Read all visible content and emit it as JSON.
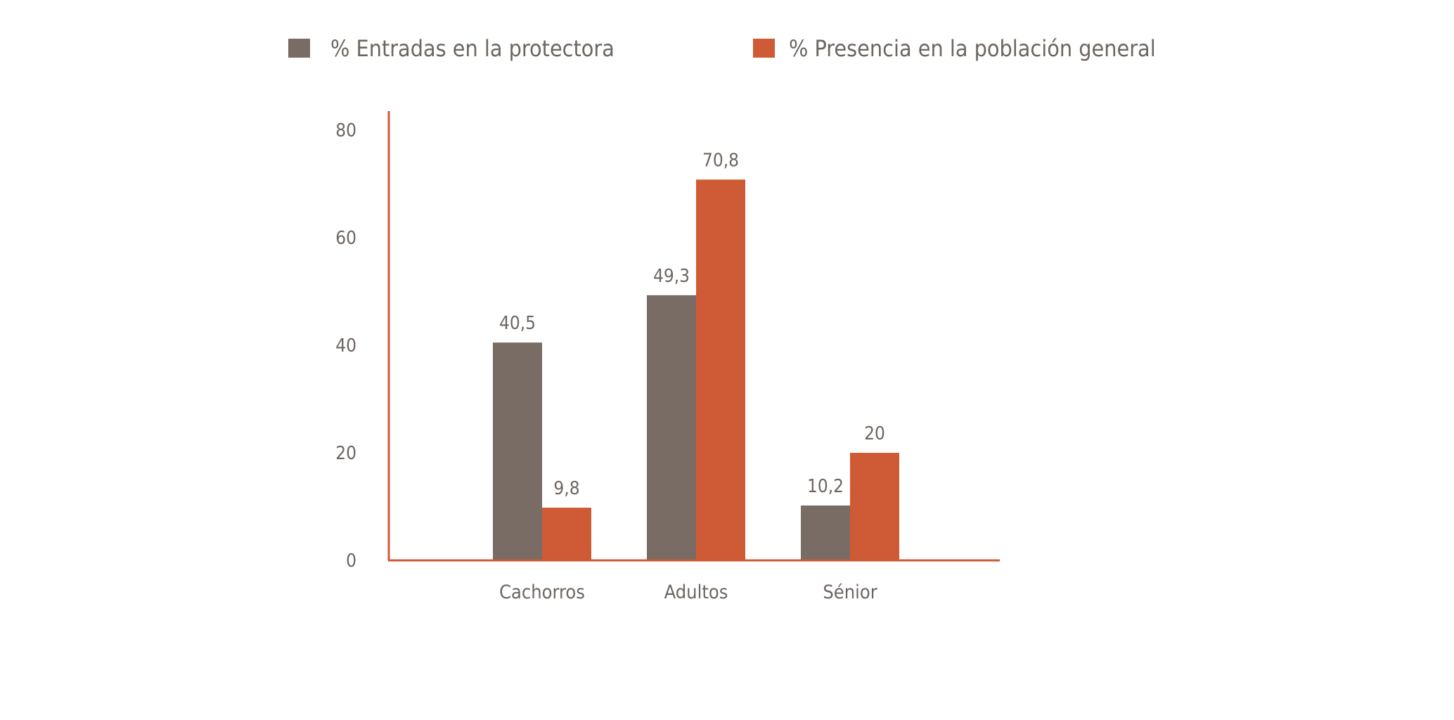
{
  "chart_data": {
    "type": "bar",
    "title": "",
    "xlabel": "",
    "ylabel": "",
    "ylim": [
      0,
      80
    ],
    "yticks": [
      0,
      20,
      40,
      60,
      80
    ],
    "categories": [
      "Cachorros",
      "Adultos",
      "Sénior"
    ],
    "series": [
      {
        "name": "% Entradas en la protectora",
        "values": [
          40.5,
          49.3,
          10.2
        ],
        "labels": [
          "40,5",
          "49,3",
          "10,2"
        ],
        "color": "#786c64"
      },
      {
        "name": "%  Presencia en la población general",
        "values": [
          9.8,
          70.8,
          20
        ],
        "labels": [
          "9,8",
          "70,8",
          "20"
        ],
        "color": "#cf5a36"
      }
    ],
    "axis_color": "#cf5a36",
    "grid": false,
    "legend_position": "top"
  }
}
